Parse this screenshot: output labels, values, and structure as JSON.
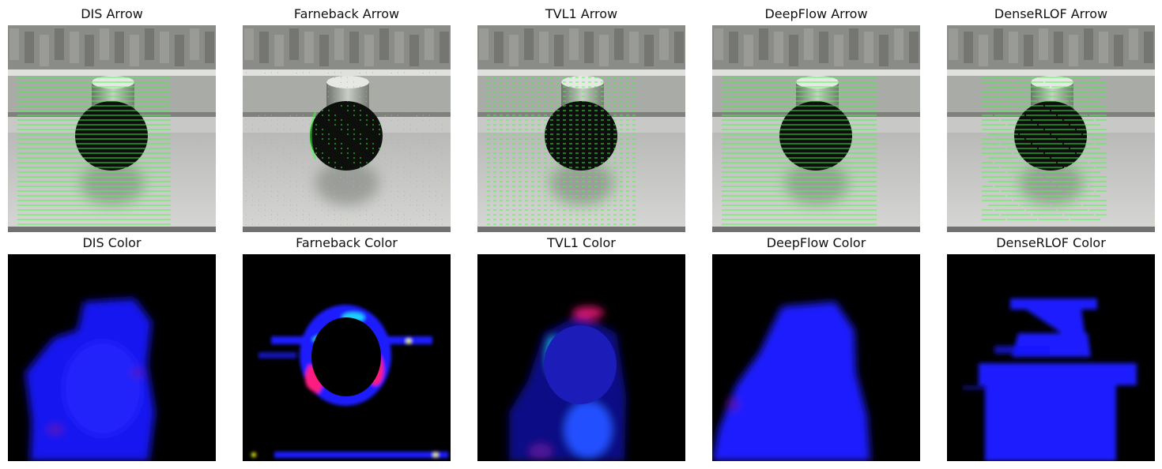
{
  "figure": {
    "panels": [
      {
        "row": "arrow",
        "title": "DIS Arrow",
        "method": "DIS"
      },
      {
        "row": "arrow",
        "title": "Farneback Arrow",
        "method": "Farneback"
      },
      {
        "row": "arrow",
        "title": "TVL1 Arrow",
        "method": "TVL1"
      },
      {
        "row": "arrow",
        "title": "DeepFlow Arrow",
        "method": "DeepFlow"
      },
      {
        "row": "arrow",
        "title": "DenseRLOF Arrow",
        "method": "DenseRLOF"
      },
      {
        "row": "color",
        "title": "DIS Color",
        "method": "DIS"
      },
      {
        "row": "color",
        "title": "Farneback Color",
        "method": "Farneback"
      },
      {
        "row": "color",
        "title": "TVL1 Color",
        "method": "TVL1"
      },
      {
        "row": "color",
        "title": "DeepFlow Color",
        "method": "DeepFlow"
      },
      {
        "row": "color",
        "title": "DenseRLOF Color",
        "method": "DenseRLOF"
      }
    ],
    "colors": {
      "arrow": "#3cff3c",
      "flow_blue": "#1a1aff",
      "flow_magenta": "#ff1a80",
      "flow_green": "#1aff5a",
      "flow_cyan": "#1ad0ff",
      "background": "#000000"
    }
  }
}
